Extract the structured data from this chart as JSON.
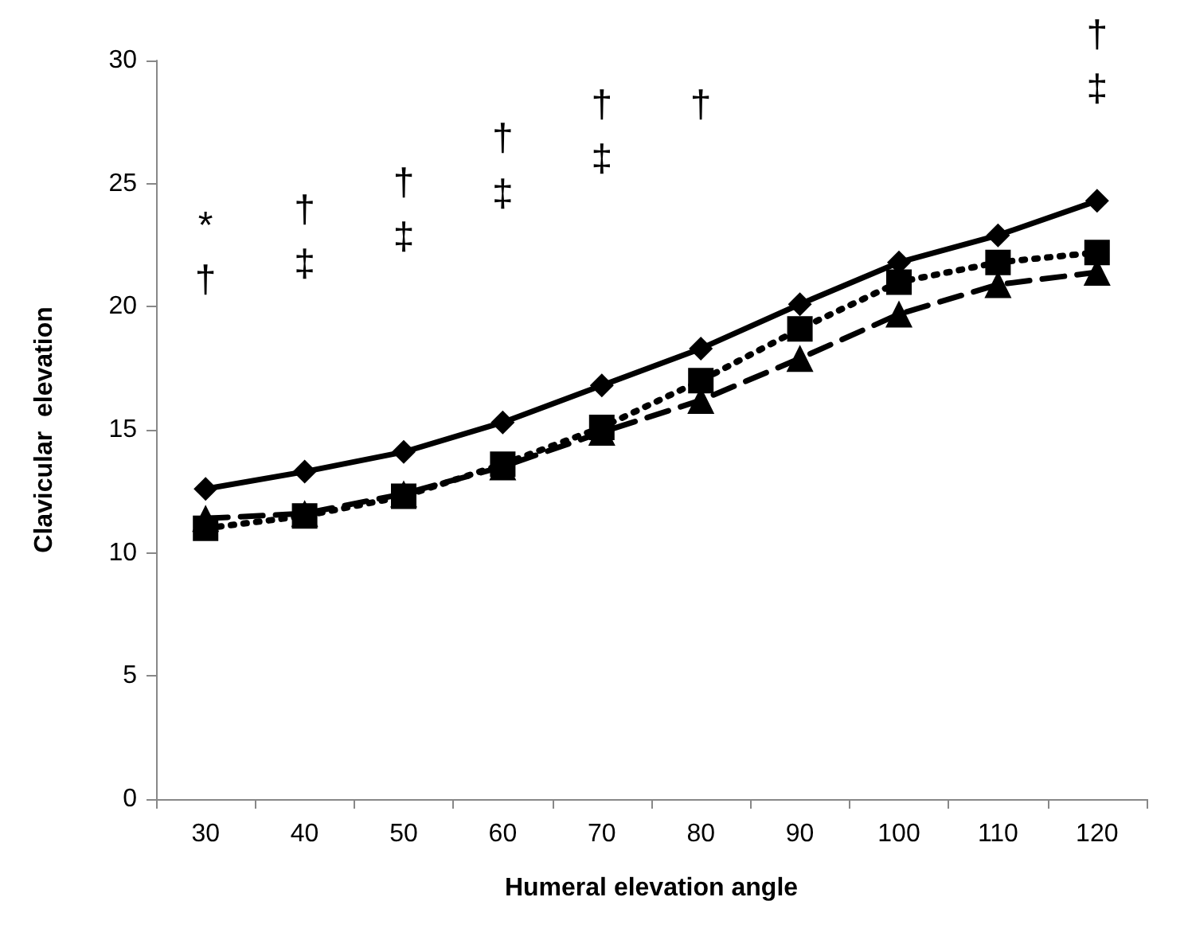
{
  "chart_data": {
    "type": "line",
    "xlabel": "Humeral elevation angle",
    "ylabel": "Clavicular  elevation",
    "categories": [
      "30",
      "40",
      "50",
      "60",
      "70",
      "80",
      "90",
      "100",
      "110",
      "120"
    ],
    "series": [
      {
        "color": "#000000",
        "marker": "diamond",
        "line_style": "solid",
        "values": [
          12.6,
          13.3,
          14.1,
          15.3,
          16.8,
          18.3,
          20.1,
          21.8,
          22.9,
          24.3
        ]
      },
      {
        "color": "#000000",
        "marker": "triangle",
        "line_style": "dashed",
        "values": [
          11.4,
          11.6,
          12.4,
          13.5,
          14.9,
          16.2,
          17.9,
          19.7,
          20.9,
          21.4
        ]
      },
      {
        "color": "#000000",
        "marker": "square",
        "line_style": "dotted",
        "values": [
          11.0,
          11.5,
          12.3,
          13.6,
          15.1,
          17.0,
          19.1,
          21.0,
          21.8,
          22.2
        ]
      }
    ],
    "ylim": [
      0,
      30
    ],
    "yticks": [
      0,
      5,
      10,
      15,
      20,
      25,
      30
    ],
    "grid": false,
    "annotations": [
      "*",
      "†",
      "†",
      "‡",
      "†",
      "‡",
      "†",
      "‡",
      "†",
      "‡",
      "†",
      "†",
      "‡"
    ]
  }
}
